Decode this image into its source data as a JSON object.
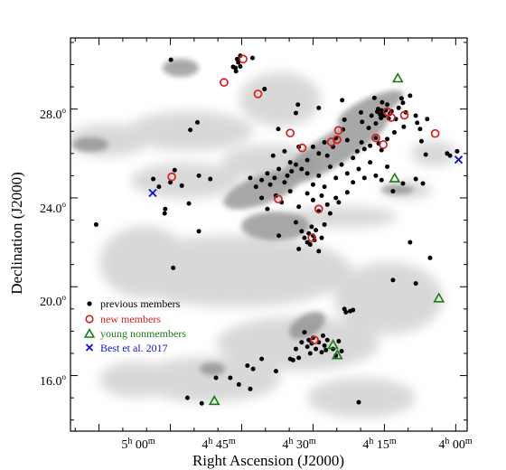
{
  "chart_data": {
    "type": "scatter",
    "xlabel": "Right Ascension (J2000)",
    "ylabel": "Declination (J2000)",
    "xlim_hours": [
      5.35,
      3.96
    ],
    "ylim_deg": [
      13.5,
      31.2
    ],
    "x_axis_inverted": true,
    "background": "grayscale extinction map",
    "grid": false,
    "legend_position": "lower-left",
    "x_ticks": [
      {
        "value": 5.0,
        "h": "5",
        "m": "00"
      },
      {
        "value": 4.75,
        "h": "4",
        "m": "45"
      },
      {
        "value": 4.5,
        "h": "4",
        "m": "30"
      },
      {
        "value": 4.25,
        "h": "4",
        "m": "15"
      },
      {
        "value": 4.0,
        "h": "4",
        "m": "00"
      }
    ],
    "y_ticks": [
      {
        "value": 16,
        "label": "16.0",
        "sup": "o"
      },
      {
        "value": 20,
        "label": "20.0",
        "sup": "o"
      },
      {
        "value": 24,
        "label": "24.0",
        "sup": "o"
      },
      {
        "value": 28,
        "label": "28.0",
        "sup": "o"
      }
    ],
    "series": [
      {
        "name": "previous members",
        "marker": "filled-circle",
        "color": "#000000",
        "points": [
          [
            4.998,
            30.22
          ],
          [
            4.772,
            29.85
          ],
          [
            4.766,
            30.25
          ],
          [
            4.762,
            30.1
          ],
          [
            4.755,
            30.4
          ],
          [
            4.77,
            29.7
          ],
          [
            4.78,
            29.9
          ],
          [
            4.755,
            29.92
          ],
          [
            4.712,
            30.3
          ],
          [
            4.67,
            28.9
          ],
          [
            4.67,
            28.9
          ],
          [
            4.905,
            27.4
          ],
          [
            4.93,
            27.06
          ],
          [
            4.622,
            27.1
          ],
          [
            4.56,
            27.82
          ],
          [
            4.553,
            28.2
          ],
          [
            4.48,
            28.05
          ],
          [
            4.398,
            28.4
          ],
          [
            4.395,
            27.08
          ],
          [
            4.39,
            27.52
          ],
          [
            4.332,
            27.85
          ],
          [
            4.328,
            27.42
          ],
          [
            4.305,
            27.15
          ],
          [
            4.295,
            27.7
          ],
          [
            4.285,
            28.5
          ],
          [
            4.28,
            27.35
          ],
          [
            4.275,
            27.88
          ],
          [
            4.272,
            28.0
          ],
          [
            4.265,
            27.75
          ],
          [
            4.262,
            27.6
          ],
          [
            4.26,
            27.94
          ],
          [
            4.258,
            28.3
          ],
          [
            4.255,
            27.85
          ],
          [
            4.25,
            27.7
          ],
          [
            4.245,
            27.95
          ],
          [
            4.24,
            28.2
          ],
          [
            4.235,
            27.58
          ],
          [
            4.23,
            27.8
          ],
          [
            4.225,
            27.9
          ],
          [
            4.21,
            27.55
          ],
          [
            4.2,
            28.05
          ],
          [
            4.19,
            28.48
          ],
          [
            4.185,
            28.28
          ],
          [
            4.182,
            27.2
          ],
          [
            4.175,
            27.85
          ],
          [
            4.16,
            28.6
          ],
          [
            4.14,
            27.7
          ],
          [
            4.135,
            27.38
          ],
          [
            4.125,
            27.1
          ],
          [
            4.1,
            27.55
          ],
          [
            4.215,
            26.95
          ],
          [
            4.24,
            26.65
          ],
          [
            4.26,
            26.15
          ],
          [
            4.27,
            26.45
          ],
          [
            4.28,
            26.7
          ],
          [
            4.3,
            26.35
          ],
          [
            4.32,
            26.2
          ],
          [
            4.33,
            26.5
          ],
          [
            4.345,
            26.1
          ],
          [
            4.36,
            25.8
          ],
          [
            4.38,
            26.6
          ],
          [
            4.42,
            26.7
          ],
          [
            4.43,
            26.3
          ],
          [
            4.45,
            25.9
          ],
          [
            4.46,
            26.5
          ],
          [
            4.48,
            26.0
          ],
          [
            4.5,
            26.3
          ],
          [
            4.52,
            25.7
          ],
          [
            4.54,
            25.3
          ],
          [
            4.56,
            25.5
          ],
          [
            4.575,
            25.2
          ],
          [
            4.58,
            25.6
          ],
          [
            4.59,
            25.0
          ],
          [
            4.6,
            24.7
          ],
          [
            4.62,
            25.3
          ],
          [
            4.635,
            24.9
          ],
          [
            4.65,
            24.6
          ],
          [
            4.66,
            25.1
          ],
          [
            4.68,
            24.8
          ],
          [
            4.7,
            24.5
          ],
          [
            4.72,
            24.9
          ],
          [
            4.64,
            25.9
          ],
          [
            4.6,
            26.1
          ],
          [
            4.55,
            26.3
          ],
          [
            4.52,
            25.1
          ],
          [
            4.5,
            24.6
          ],
          [
            4.48,
            25.0
          ],
          [
            4.46,
            24.5
          ],
          [
            4.44,
            25.4
          ],
          [
            4.42,
            24.9
          ],
          [
            4.4,
            25.5
          ],
          [
            4.38,
            25.1
          ],
          [
            4.36,
            24.7
          ],
          [
            4.34,
            25.3
          ],
          [
            4.32,
            24.9
          ],
          [
            4.3,
            25.6
          ],
          [
            4.28,
            25.0
          ],
          [
            4.26,
            24.8
          ],
          [
            4.24,
            25.4
          ],
          [
            4.22,
            24.3
          ],
          [
            4.38,
            24.25
          ],
          [
            4.42,
            24.0
          ],
          [
            4.45,
            23.7
          ],
          [
            4.47,
            24.1
          ],
          [
            4.5,
            23.9
          ],
          [
            4.52,
            24.2
          ],
          [
            4.55,
            23.6
          ],
          [
            4.58,
            24.3
          ],
          [
            4.61,
            23.8
          ],
          [
            4.63,
            24.1
          ],
          [
            4.66,
            23.5
          ],
          [
            4.68,
            24.0
          ],
          [
            4.48,
            23.4
          ],
          [
            4.44,
            23.3
          ],
          [
            4.41,
            23.8
          ],
          [
            4.56,
            22.9
          ],
          [
            4.54,
            22.5
          ],
          [
            4.53,
            22.2
          ],
          [
            4.52,
            22.0
          ],
          [
            4.515,
            22.4
          ],
          [
            4.51,
            21.9
          ],
          [
            4.505,
            22.7
          ],
          [
            4.5,
            22.3
          ],
          [
            4.495,
            22.1
          ],
          [
            4.48,
            21.6
          ],
          [
            4.49,
            22.55
          ],
          [
            4.47,
            22.2
          ],
          [
            4.46,
            22.8
          ],
          [
            4.55,
            21.7
          ],
          [
            4.62,
            22.3
          ],
          [
            5.26,
            22.8
          ],
          [
            5.018,
            23.5
          ],
          [
            5.02,
            23.3
          ],
          [
            4.935,
            23.75
          ],
          [
            4.9,
            22.5
          ],
          [
            4.99,
            20.85
          ],
          [
            5.06,
            24.85
          ],
          [
            5.04,
            24.5
          ],
          [
            4.985,
            25.25
          ],
          [
            4.9,
            25.0
          ],
          [
            4.86,
            24.85
          ],
          [
            5.0,
            24.7
          ],
          [
            4.96,
            24.55
          ],
          [
            4.12,
            26.55
          ],
          [
            4.105,
            25.95
          ],
          [
            4.115,
            24.65
          ],
          [
            4.14,
            24.85
          ],
          [
            4.185,
            24.65
          ],
          [
            4.03,
            26.0
          ],
          [
            4.02,
            25.9
          ],
          [
            3.995,
            26.1
          ],
          [
            4.16,
            22.0
          ],
          [
            4.09,
            21.3
          ],
          [
            4.22,
            20.3
          ],
          [
            4.14,
            20.15
          ],
          [
            4.39,
            19.0
          ],
          [
            4.385,
            18.85
          ],
          [
            4.37,
            18.9
          ],
          [
            4.36,
            18.95
          ],
          [
            4.53,
            17.95
          ],
          [
            4.52,
            17.3
          ],
          [
            4.515,
            17.6
          ],
          [
            4.51,
            17.0
          ],
          [
            4.505,
            17.45
          ],
          [
            4.5,
            17.7
          ],
          [
            4.49,
            17.2
          ],
          [
            4.48,
            17.5
          ],
          [
            4.47,
            17.05
          ],
          [
            4.465,
            17.8
          ],
          [
            4.46,
            17.35
          ],
          [
            4.455,
            17.15
          ],
          [
            4.45,
            17.6
          ],
          [
            4.54,
            17.5
          ],
          [
            4.55,
            16.8
          ],
          [
            4.56,
            17.2
          ],
          [
            4.57,
            16.7
          ],
          [
            4.58,
            16.75
          ],
          [
            4.43,
            17.2
          ],
          [
            4.42,
            16.9
          ],
          [
            4.41,
            17.55
          ],
          [
            4.4,
            17.1
          ],
          [
            4.63,
            16.2
          ],
          [
            4.68,
            16.75
          ],
          [
            4.71,
            16.3
          ],
          [
            4.73,
            16.45
          ],
          [
            4.72,
            15.4
          ],
          [
            4.76,
            15.6
          ],
          [
            4.79,
            15.9
          ],
          [
            4.84,
            15.9
          ],
          [
            4.94,
            15.0
          ],
          [
            4.89,
            14.75
          ],
          [
            4.34,
            14.8
          ]
        ]
      },
      {
        "name": "new members",
        "marker": "open-circle",
        "color": "#d42020",
        "points": [
          [
            4.745,
            30.25
          ],
          [
            4.812,
            29.2
          ],
          [
            4.693,
            28.68
          ],
          [
            4.58,
            26.92
          ],
          [
            4.538,
            26.25
          ],
          [
            4.436,
            26.52
          ],
          [
            4.411,
            27.04
          ],
          [
            4.416,
            26.62
          ],
          [
            4.226,
            27.62
          ],
          [
            4.24,
            27.88
          ],
          [
            4.254,
            26.4
          ],
          [
            4.28,
            26.7
          ],
          [
            4.18,
            27.72
          ],
          [
            4.072,
            26.9
          ],
          [
            4.504,
            22.2
          ],
          [
            4.495,
            17.6
          ],
          [
            4.995,
            24.95
          ],
          [
            4.622,
            23.95
          ],
          [
            4.48,
            23.5
          ]
        ]
      },
      {
        "name": "young nonmembers",
        "marker": "open-triangle",
        "color": "#1a7a1a",
        "points": [
          [
            4.203,
            29.38
          ],
          [
            4.214,
            24.88
          ],
          [
            4.059,
            19.48
          ],
          [
            4.43,
            17.38
          ],
          [
            4.415,
            16.92
          ],
          [
            4.846,
            14.86
          ]
        ]
      },
      {
        "name": "Best et al. 2017",
        "marker": "x",
        "color": "#1010c8",
        "points": [
          [
            5.062,
            24.22
          ],
          [
            3.99,
            25.72
          ]
        ]
      }
    ]
  }
}
